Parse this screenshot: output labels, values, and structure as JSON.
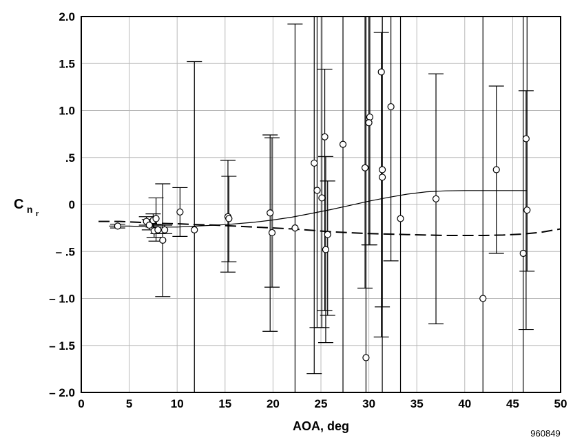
{
  "chart_data": {
    "type": "scatter",
    "xlabel": "AOA, deg",
    "ylabel": {
      "main": "C",
      "sub": "n",
      "subsub": "r"
    },
    "xlim": [
      0,
      50
    ],
    "ylim": [
      -2.0,
      2.0
    ],
    "grid": true,
    "x_ticks": [
      0,
      5,
      10,
      15,
      20,
      25,
      30,
      35,
      40,
      45,
      50
    ],
    "x_tick_labels": [
      "0",
      "5",
      "10",
      "15",
      "20",
      "25",
      "30",
      "35",
      "40",
      "45",
      "50"
    ],
    "y_ticks": [
      2.0,
      1.5,
      1.0,
      0.5,
      0,
      -0.5,
      -1.0,
      -1.5,
      -2.0
    ],
    "y_tick_labels": [
      "2.0",
      "1.5",
      "1.0",
      ".5",
      "0",
      "– .5",
      "– 1.0",
      "– 1.5",
      "– 2.0"
    ],
    "figure_id": "960849",
    "points": [
      {
        "x": 3.8,
        "y": -0.23,
        "lo": -0.25,
        "hi": -0.21
      },
      {
        "x": 6.8,
        "y": -0.18,
        "lo": -0.22,
        "hi": -0.13
      },
      {
        "x": 7.1,
        "y": -0.22,
        "lo": -0.27,
        "hi": -0.16
      },
      {
        "x": 7.5,
        "y": -0.17,
        "lo": -0.24,
        "hi": -0.1
      },
      {
        "x": 7.6,
        "y": -0.28,
        "lo": -0.35,
        "hi": -0.21
      },
      {
        "x": 7.8,
        "y": -0.15,
        "lo": -0.39,
        "hi": 0.07
      },
      {
        "x": 8.0,
        "y": -0.27,
        "lo": -0.31,
        "hi": -0.22
      },
      {
        "x": 8.5,
        "y": -0.38,
        "lo": -0.98,
        "hi": 0.22
      },
      {
        "x": 8.7,
        "y": -0.27,
        "lo": -0.31,
        "hi": -0.22
      },
      {
        "x": 10.3,
        "y": -0.08,
        "lo": -0.34,
        "hi": 0.18
      },
      {
        "x": 11.8,
        "y": -0.27,
        "lo": -2.0,
        "hi": 1.52
      },
      {
        "x": 15.3,
        "y": -0.13,
        "lo": -0.72,
        "hi": 0.47
      },
      {
        "x": 15.4,
        "y": -0.15,
        "lo": -0.61,
        "hi": 0.3
      },
      {
        "x": 19.7,
        "y": -0.09,
        "lo": -1.35,
        "hi": 0.74
      },
      {
        "x": 19.9,
        "y": -0.3,
        "lo": -0.88,
        "hi": 0.71
      },
      {
        "x": 22.3,
        "y": -0.25,
        "lo": -2.0,
        "hi": 1.92
      },
      {
        "x": 24.3,
        "y": 0.44,
        "lo": -1.8,
        "hi": 2.0
      },
      {
        "x": 24.6,
        "y": 0.15,
        "lo": -1.31,
        "hi": 2.0
      },
      {
        "x": 25.1,
        "y": 0.07,
        "lo": -1.31,
        "hi": 2.0
      },
      {
        "x": 25.4,
        "y": 0.72,
        "lo": -1.13,
        "hi": 1.44
      },
      {
        "x": 25.5,
        "y": -0.48,
        "lo": -1.47,
        "hi": 0.51
      },
      {
        "x": 25.7,
        "y": -0.32,
        "lo": -1.18,
        "hi": 0.25
      },
      {
        "x": 27.3,
        "y": 0.64,
        "lo": -2.0,
        "hi": 2.0
      },
      {
        "x": 29.6,
        "y": 0.39,
        "lo": -0.89,
        "hi": 2.0
      },
      {
        "x": 29.7,
        "y": -1.63,
        "lo": -2.0,
        "hi": 2.0
      },
      {
        "x": 30.1,
        "y": 0.93,
        "lo": -0.43,
        "hi": 2.0
      },
      {
        "x": 30.0,
        "y": 0.87,
        "lo": -0.43,
        "hi": 2.0
      },
      {
        "x": 31.3,
        "y": 1.41,
        "lo": -1.41,
        "hi": 1.83
      },
      {
        "x": 31.4,
        "y": 0.37,
        "lo": -1.09,
        "hi": 2.0
      },
      {
        "x": 31.4,
        "y": 0.29,
        "lo": -2.0,
        "hi": 2.0
      },
      {
        "x": 32.3,
        "y": 1.04,
        "lo": -0.6,
        "hi": 2.0
      },
      {
        "x": 33.3,
        "y": -0.15,
        "lo": -2.0,
        "hi": 2.0
      },
      {
        "x": 37.0,
        "y": 0.06,
        "lo": -1.27,
        "hi": 1.39
      },
      {
        "x": 41.9,
        "y": -1.0,
        "lo": -2.0,
        "hi": 2.0
      },
      {
        "x": 43.3,
        "y": 0.37,
        "lo": -0.52,
        "hi": 1.26
      },
      {
        "x": 46.1,
        "y": -0.52,
        "lo": -2.0,
        "hi": 2.0
      },
      {
        "x": 46.4,
        "y": 0.7,
        "lo": -1.33,
        "hi": 1.21
      },
      {
        "x": 46.5,
        "y": -0.06,
        "lo": -0.71,
        "hi": 2.0
      }
    ],
    "series": [
      {
        "style": "solid",
        "x": [
          2.9,
          5,
          8,
          10,
          12,
          15,
          18,
          20,
          22,
          24,
          26,
          28,
          30,
          32,
          34,
          36,
          38,
          40,
          42,
          44,
          46.5
        ],
        "y": [
          -0.23,
          -0.23,
          -0.24,
          -0.24,
          -0.23,
          -0.215,
          -0.19,
          -0.165,
          -0.135,
          -0.095,
          -0.055,
          -0.01,
          0.035,
          0.075,
          0.11,
          0.135,
          0.145,
          0.148,
          0.148,
          0.148,
          0.148
        ]
      },
      {
        "style": "dashed",
        "x": [
          1.8,
          4,
          6,
          8,
          10,
          12,
          14,
          16,
          18,
          20,
          22,
          24,
          26,
          28,
          30,
          32,
          34,
          36,
          38,
          40,
          42,
          44,
          46,
          48,
          50
        ],
        "y": [
          -0.18,
          -0.18,
          -0.19,
          -0.2,
          -0.205,
          -0.215,
          -0.22,
          -0.23,
          -0.24,
          -0.25,
          -0.26,
          -0.275,
          -0.29,
          -0.3,
          -0.31,
          -0.315,
          -0.32,
          -0.325,
          -0.33,
          -0.33,
          -0.33,
          -0.325,
          -0.315,
          -0.295,
          -0.26
        ]
      }
    ]
  }
}
